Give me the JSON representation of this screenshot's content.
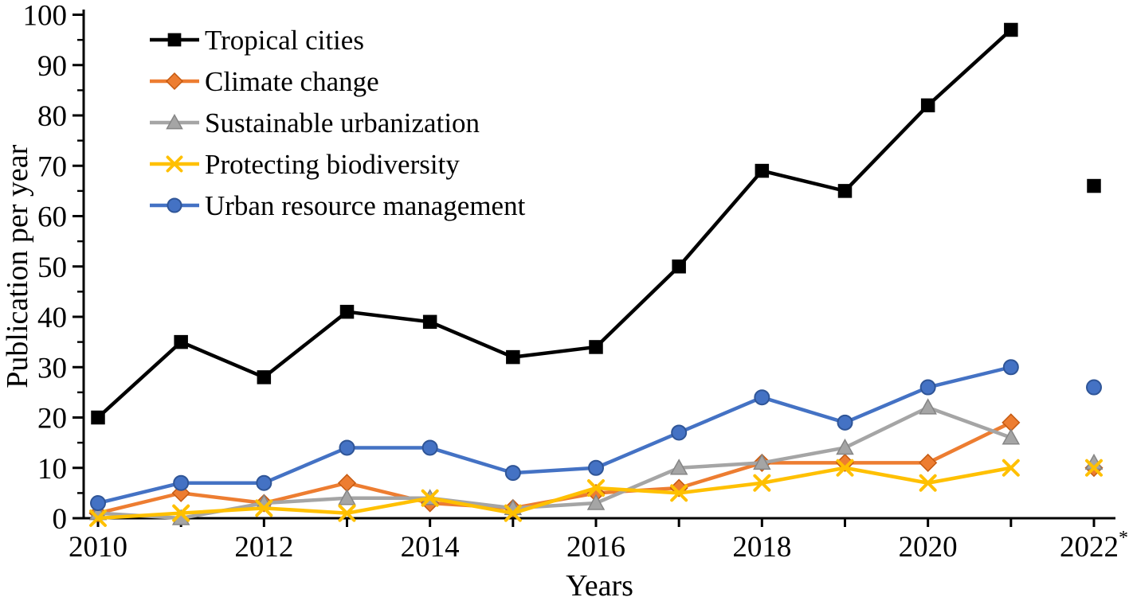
{
  "chart_data": {
    "type": "line",
    "title": "",
    "xlabel": "Years",
    "ylabel": "Publication per year",
    "x": [
      2010,
      2011,
      2012,
      2013,
      2014,
      2015,
      2016,
      2017,
      2018,
      2019,
      2020,
      2021,
      2022
    ],
    "x_tick_labels": [
      {
        "year": 2010,
        "label": "2010",
        "superscript": ""
      },
      {
        "year": 2012,
        "label": "2012",
        "superscript": ""
      },
      {
        "year": 2014,
        "label": "2014",
        "superscript": ""
      },
      {
        "year": 2016,
        "label": "2016",
        "superscript": ""
      },
      {
        "year": 2018,
        "label": "2018",
        "superscript": ""
      },
      {
        "year": 2020,
        "label": "2020",
        "superscript": ""
      },
      {
        "year": 2022,
        "label": "2022",
        "superscript": "*"
      }
    ],
    "y_ticks": [
      0,
      10,
      20,
      30,
      40,
      50,
      60,
      70,
      80,
      90,
      100
    ],
    "y_minor_step": 5,
    "ylim": [
      0,
      100
    ],
    "xlim": [
      2010,
      2022
    ],
    "grid": false,
    "legend_position": "top-left",
    "last_point_disconnected": true,
    "series": [
      {
        "name": "Tropical cities",
        "slug": "tropical-cities",
        "marker": "square",
        "color": "#000000",
        "marker_fill": "#000000",
        "marker_stroke": "#000000",
        "values": [
          20,
          35,
          28,
          41,
          39,
          32,
          34,
          50,
          69,
          65,
          82,
          97,
          66
        ]
      },
      {
        "name": "Climate change",
        "slug": "climate-change",
        "marker": "diamond",
        "color": "#ED7D31",
        "marker_fill": "#ED7D31",
        "marker_stroke": "#C55A11",
        "values": [
          1,
          5,
          3,
          7,
          3,
          2,
          5,
          6,
          11,
          11,
          11,
          19,
          10
        ]
      },
      {
        "name": "Sustainable urbanization",
        "slug": "sustainable-urbanization",
        "marker": "triangle",
        "color": "#A5A5A5",
        "marker_fill": "#A5A5A5",
        "marker_stroke": "#858585",
        "values": [
          1,
          0,
          3,
          4,
          4,
          2,
          3,
          10,
          11,
          14,
          22,
          16,
          11
        ]
      },
      {
        "name": "Protecting biodiversity",
        "slug": "protecting-biodiversity",
        "marker": "x",
        "color": "#FFC000",
        "marker_fill": "#FFC000",
        "marker_stroke": "#FFC000",
        "values": [
          0,
          1,
          2,
          1,
          4,
          1,
          6,
          5,
          7,
          10,
          7,
          10,
          10
        ]
      },
      {
        "name": "Urban resource management",
        "slug": "urban-resource-management",
        "marker": "circle",
        "color": "#4472C4",
        "marker_fill": "#4472C4",
        "marker_stroke": "#2F5597",
        "values": [
          3,
          7,
          7,
          14,
          14,
          9,
          10,
          17,
          24,
          19,
          26,
          30,
          26
        ]
      }
    ]
  },
  "colors": {
    "axis": "#000000",
    "background": "#ffffff"
  }
}
